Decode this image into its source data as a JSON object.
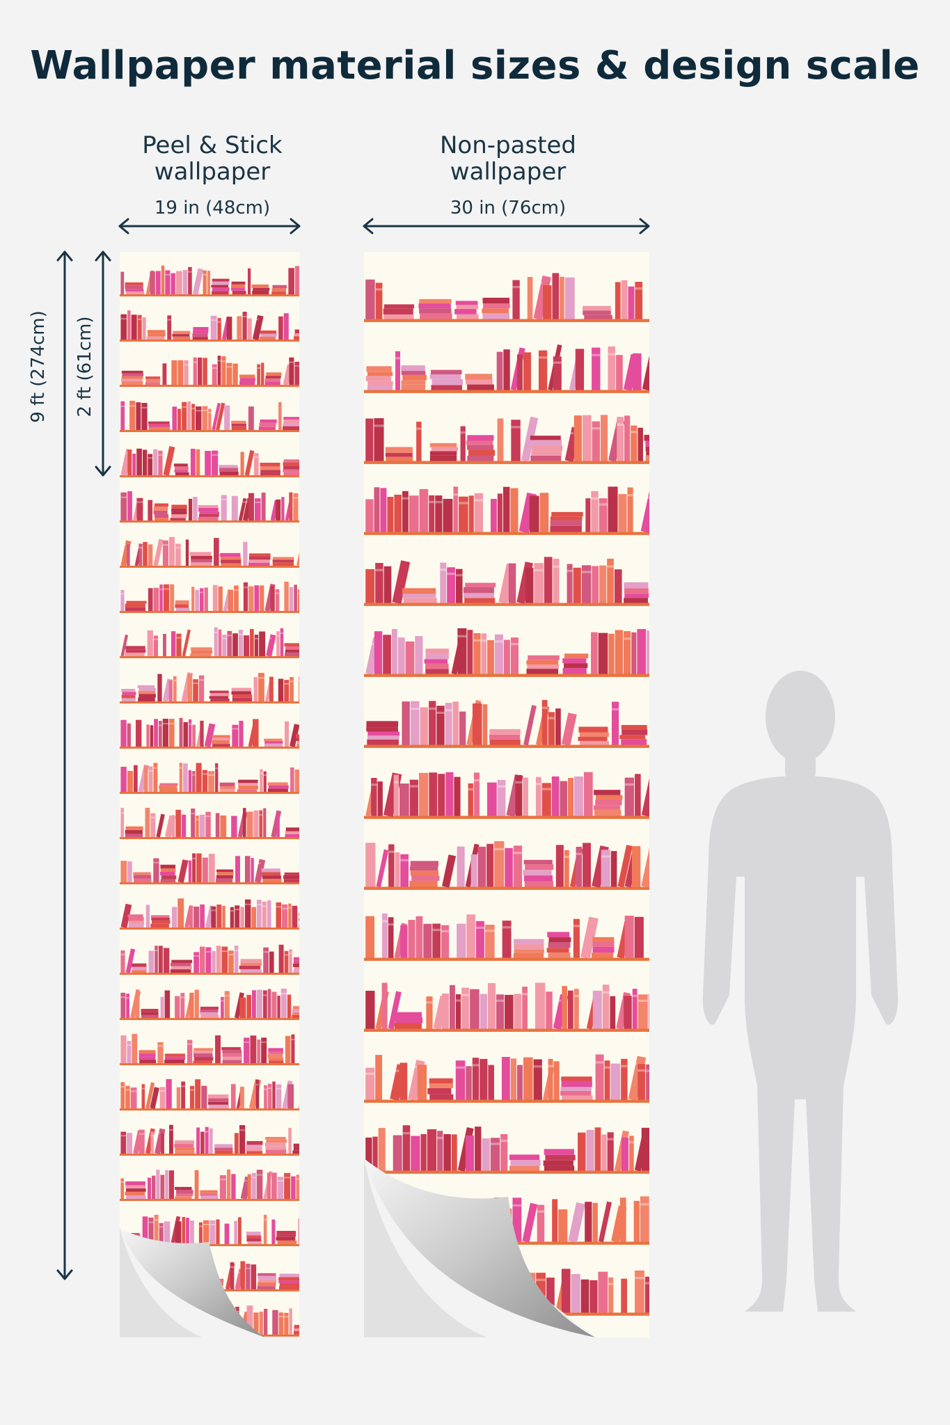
{
  "title": "Wallpaper material sizes & design scale",
  "peel_stick": {
    "label_line1": "Peel & Stick",
    "label_line2": "wallpaper",
    "width_label": "19 in (48cm)"
  },
  "non_pasted": {
    "label_line1": "Non-pasted",
    "label_line2": "wallpaper",
    "width_label": "30 in (76cm)"
  },
  "height_full_label": "9 ft (274cm)",
  "height_repeat_label": "2 ft (61cm)",
  "colors": {
    "background": "#f3f3f4",
    "text": "#0f2a3a",
    "paper": "#fdfbf0",
    "shelf": "#e8733f",
    "silhouette": "#d8d8da",
    "book_palette": [
      "#e0504a",
      "#c73b56",
      "#e44c9c",
      "#f07a5a",
      "#ea6f8e",
      "#d1587f",
      "#f29aa8",
      "#b9324a",
      "#e3a0c8",
      "#f2856c"
    ]
  },
  "icons": {
    "silhouette": "human-figure-icon",
    "peel_corner": "peel-corner-icon"
  }
}
